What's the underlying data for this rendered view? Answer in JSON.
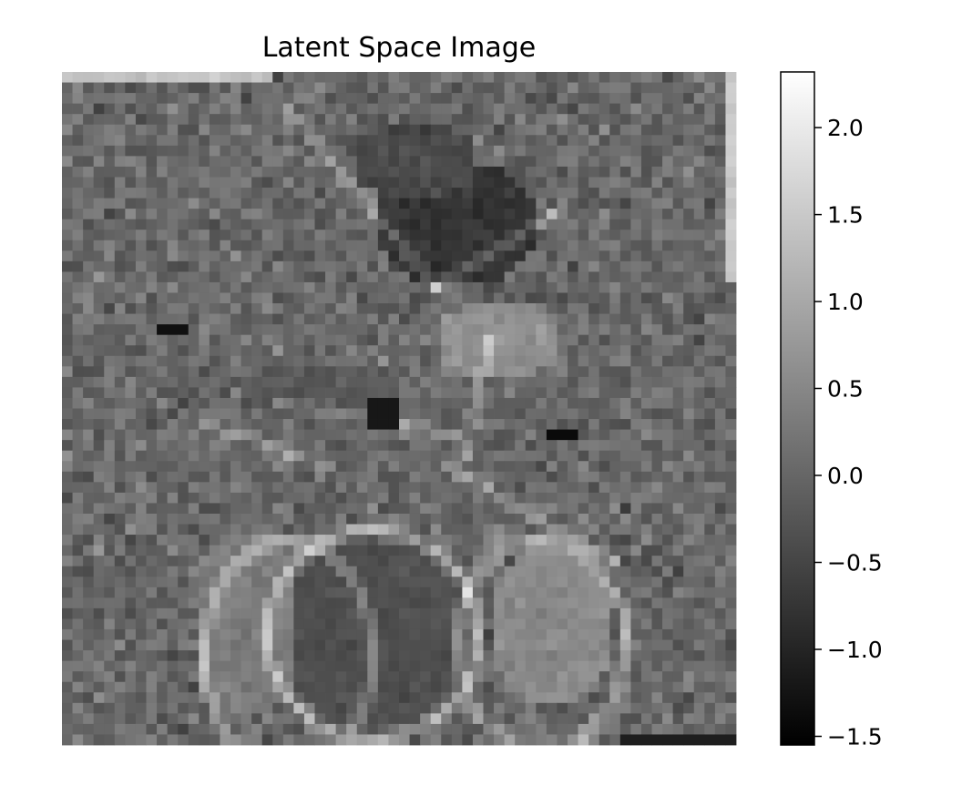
{
  "chart_data": {
    "type": "heatmap",
    "title": "Latent Space Image",
    "xlabel": "",
    "ylabel": "",
    "colormap": "gray",
    "axes_visible": false,
    "grid": false,
    "grid_size": [
      64,
      64
    ],
    "value_range": [
      -1.55,
      2.32
    ],
    "colorbar": {
      "position": "right",
      "ticks": [
        2.0,
        1.5,
        1.0,
        0.5,
        0.0,
        -0.5,
        -1.0,
        -1.5
      ],
      "tick_labels": [
        "2.0",
        "1.5",
        "1.0",
        "0.5",
        "0.0",
        "−0.5",
        "−1.0",
        "−1.5"
      ]
    },
    "content_description": "Noisy grayscale latent tensor showing the faint outline of a face/figure: brighter ridges (~1.0-1.5) form contours, darker blobs (~-1.0) near the upper center and a small dark spot near the middle, with a bright top strip and a dark strip at the bottom right."
  }
}
